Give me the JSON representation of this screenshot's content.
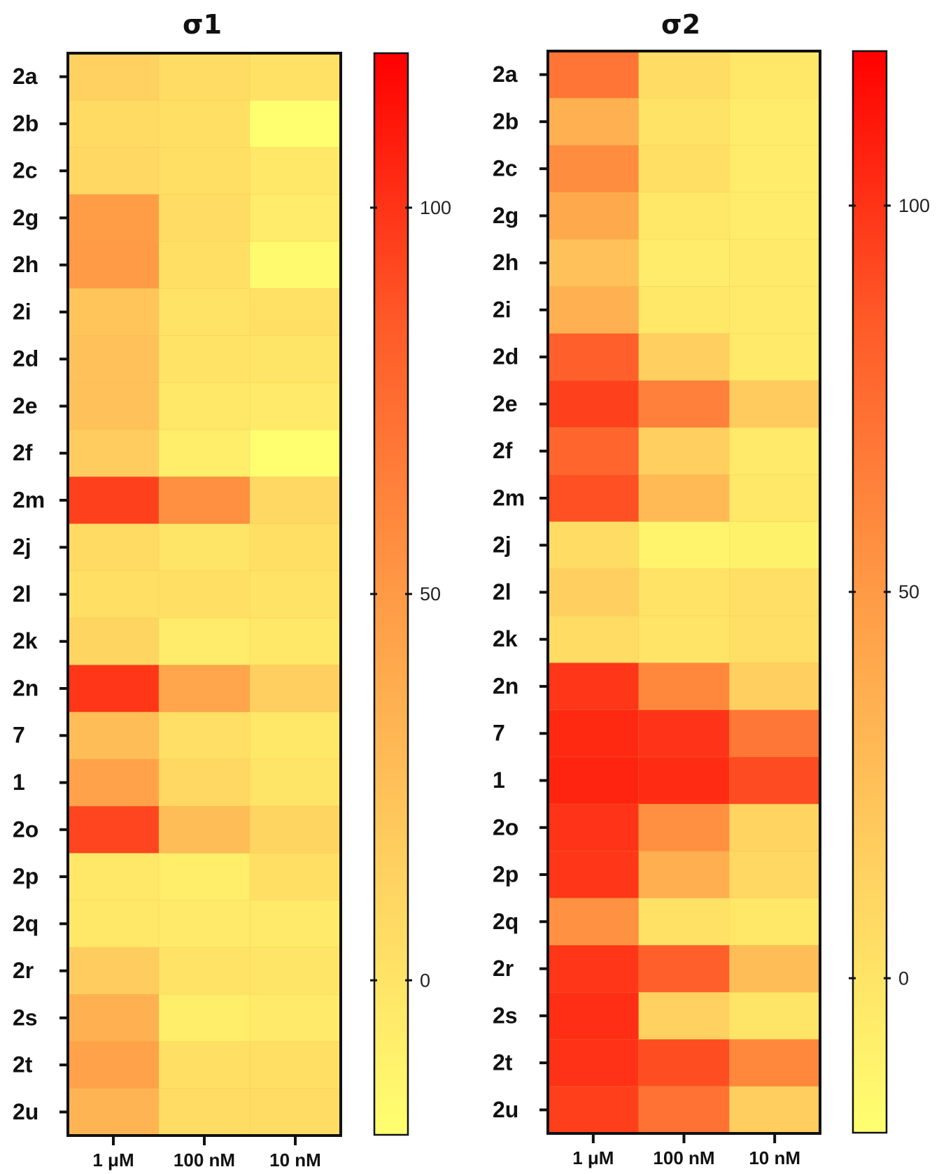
{
  "chart_data": [
    {
      "type": "heatmap",
      "title": "σ1",
      "rows": [
        "2a",
        "2b",
        "2c",
        "2g",
        "2h",
        "2i",
        "2d",
        "2e",
        "2f",
        "2m",
        "2j",
        "2l",
        "2k",
        "2n",
        "7",
        "1",
        "2o",
        "2p",
        "2q",
        "2r",
        "2s",
        "2t",
        "2u"
      ],
      "columns": [
        "1 μM",
        "100 nM",
        "10 nM"
      ],
      "values": [
        [
          14,
          5,
          2
        ],
        [
          7,
          3,
          -26
        ],
        [
          9,
          3,
          -3
        ],
        [
          48,
          6,
          -6
        ],
        [
          50,
          3,
          -16
        ],
        [
          22,
          1,
          2
        ],
        [
          25,
          1,
          -1
        ],
        [
          25,
          -2,
          -5
        ],
        [
          17,
          -7,
          -22
        ],
        [
          95,
          56,
          9
        ],
        [
          7,
          -1,
          3
        ],
        [
          3,
          3,
          1
        ],
        [
          11,
          -6,
          -2
        ],
        [
          99,
          43,
          15
        ],
        [
          27,
          4,
          -2
        ],
        [
          45,
          9,
          -1
        ],
        [
          93,
          27,
          11
        ],
        [
          -2,
          -7,
          3
        ],
        [
          -3,
          -4,
          -5
        ],
        [
          17,
          1,
          -1
        ],
        [
          35,
          -7,
          -4
        ],
        [
          45,
          3,
          3
        ],
        [
          33,
          5,
          5
        ]
      ],
      "colorbar": {
        "ticks": [
          0,
          50,
          100
        ],
        "min": -20,
        "max": 120
      }
    },
    {
      "type": "heatmap",
      "title": "σ2",
      "rows": [
        "2a",
        "2b",
        "2c",
        "2g",
        "2h",
        "2i",
        "2d",
        "2e",
        "2f",
        "2m",
        "2j",
        "2l",
        "2k",
        "2n",
        "7",
        "1",
        "2o",
        "2p",
        "2q",
        "2r",
        "2s",
        "2t",
        "2u"
      ],
      "columns": [
        "1 μM",
        "100 nM",
        "10 nM"
      ],
      "values": [
        [
          70,
          6,
          -3
        ],
        [
          36,
          1,
          -6
        ],
        [
          57,
          3,
          -6
        ],
        [
          40,
          -3,
          -6
        ],
        [
          25,
          -6,
          -4
        ],
        [
          35,
          -2,
          -4
        ],
        [
          82,
          15,
          -4
        ],
        [
          95,
          64,
          18
        ],
        [
          79,
          15,
          -4
        ],
        [
          89,
          29,
          -3
        ],
        [
          6,
          -12,
          -10
        ],
        [
          15,
          1,
          4
        ],
        [
          6,
          0,
          4
        ],
        [
          99,
          60,
          15
        ],
        [
          104,
          100,
          69
        ],
        [
          106,
          103,
          91
        ],
        [
          100,
          56,
          12
        ],
        [
          99,
          37,
          9
        ],
        [
          55,
          2,
          -3
        ],
        [
          99,
          82,
          27
        ],
        [
          102,
          14,
          -1
        ],
        [
          101,
          90,
          60
        ],
        [
          96,
          72,
          16
        ]
      ],
      "colorbar": {
        "ticks": [
          0,
          50,
          100
        ],
        "min": -20,
        "max": 120
      }
    }
  ],
  "colors": {
    "low": "#ffff70",
    "mid": "#ff9a46",
    "high": "#ff0000"
  }
}
